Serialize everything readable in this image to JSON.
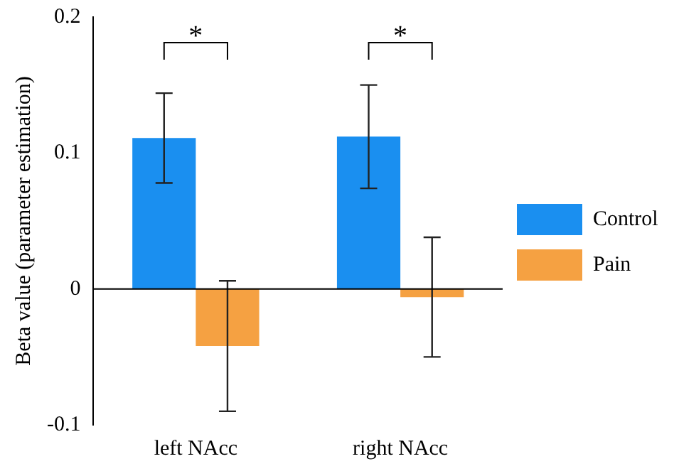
{
  "chart_data": {
    "type": "bar",
    "ylabel": "Beta value (parameter estimation)",
    "categories": [
      "left NAcc",
      "right NAcc"
    ],
    "series": [
      {
        "name": "Control",
        "color": "#1a8ff0",
        "values": [
          0.111,
          0.112
        ],
        "errors": [
          0.033,
          0.038
        ]
      },
      {
        "name": "Pain",
        "color": "#f5a142",
        "values": [
          -0.042,
          -0.006
        ],
        "errors": [
          0.048,
          0.044
        ]
      }
    ],
    "ylim": [
      -0.1,
      0.2
    ],
    "yticks": [
      -0.1,
      0,
      0.1,
      0.2
    ],
    "grid": false,
    "ref_lines": [
      {
        "axis": "y",
        "value": 0,
        "color": "#000000"
      }
    ],
    "legend": "right",
    "annotations": [
      "*",
      "*"
    ]
  }
}
